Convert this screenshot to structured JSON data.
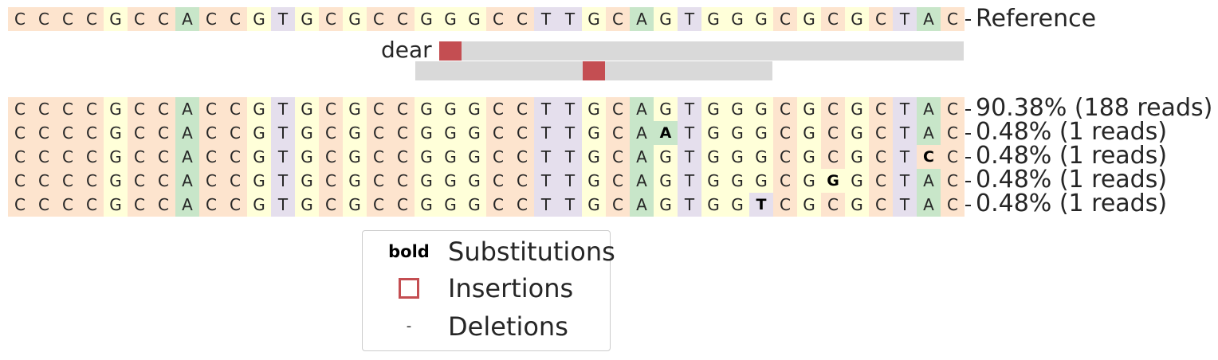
{
  "colors": {
    "A": "#c8e6c9",
    "C": "#fde4ce",
    "G": "#ffffd9",
    "T": "#e5dfed",
    "insertion": "#c44e52",
    "guide": "#d9d9d9"
  },
  "reference": {
    "label": "Reference",
    "sequence": "CCCCGCCACCGTGCGCCGGGCCTTGCAGTGGGCGCGCTAC"
  },
  "guides": [
    {
      "label": "dear",
      "start_col": 18,
      "end_col": 39,
      "marked_col": 18
    },
    {
      "label": "",
      "start_col": 17,
      "end_col": 31,
      "marked_col": 24
    }
  ],
  "alleles": [
    {
      "sequence": "CCCCGCCACCGTGCGCCGGGCCTTGCAGTGGGCGCGCTAC",
      "label": "90.38% (188 reads)",
      "bold_positions": []
    },
    {
      "sequence": "CCCCGCCACCGTGCGCCGGGCCTTGCAATGGGCGCGCTAC",
      "label": "0.48% (1 reads)",
      "bold_positions": [
        27
      ]
    },
    {
      "sequence": "CCCCGCCACCGTGCGCCGGGCCTTGCAGTGGGCGCGCTCC",
      "label": "0.48% (1 reads)",
      "bold_positions": [
        38
      ]
    },
    {
      "sequence": "CCCCGCCACCGTGCGCCGGGCCTTGCAGTGGGCGGGCTAC",
      "label": "0.48% (1 reads)",
      "bold_positions": [
        34
      ]
    },
    {
      "sequence": "CCCCGCCACCGTGCGCCGGGCCTTGCAGTGGTCGCGCTAC",
      "label": "0.48% (1 reads)",
      "bold_positions": [
        31
      ]
    }
  ],
  "legend": {
    "items": [
      {
        "symbol_text": "bold",
        "label": "Substitutions"
      },
      {
        "symbol_text": "",
        "label": "Insertions"
      },
      {
        "symbol_text": "-",
        "label": "Deletions"
      }
    ]
  }
}
